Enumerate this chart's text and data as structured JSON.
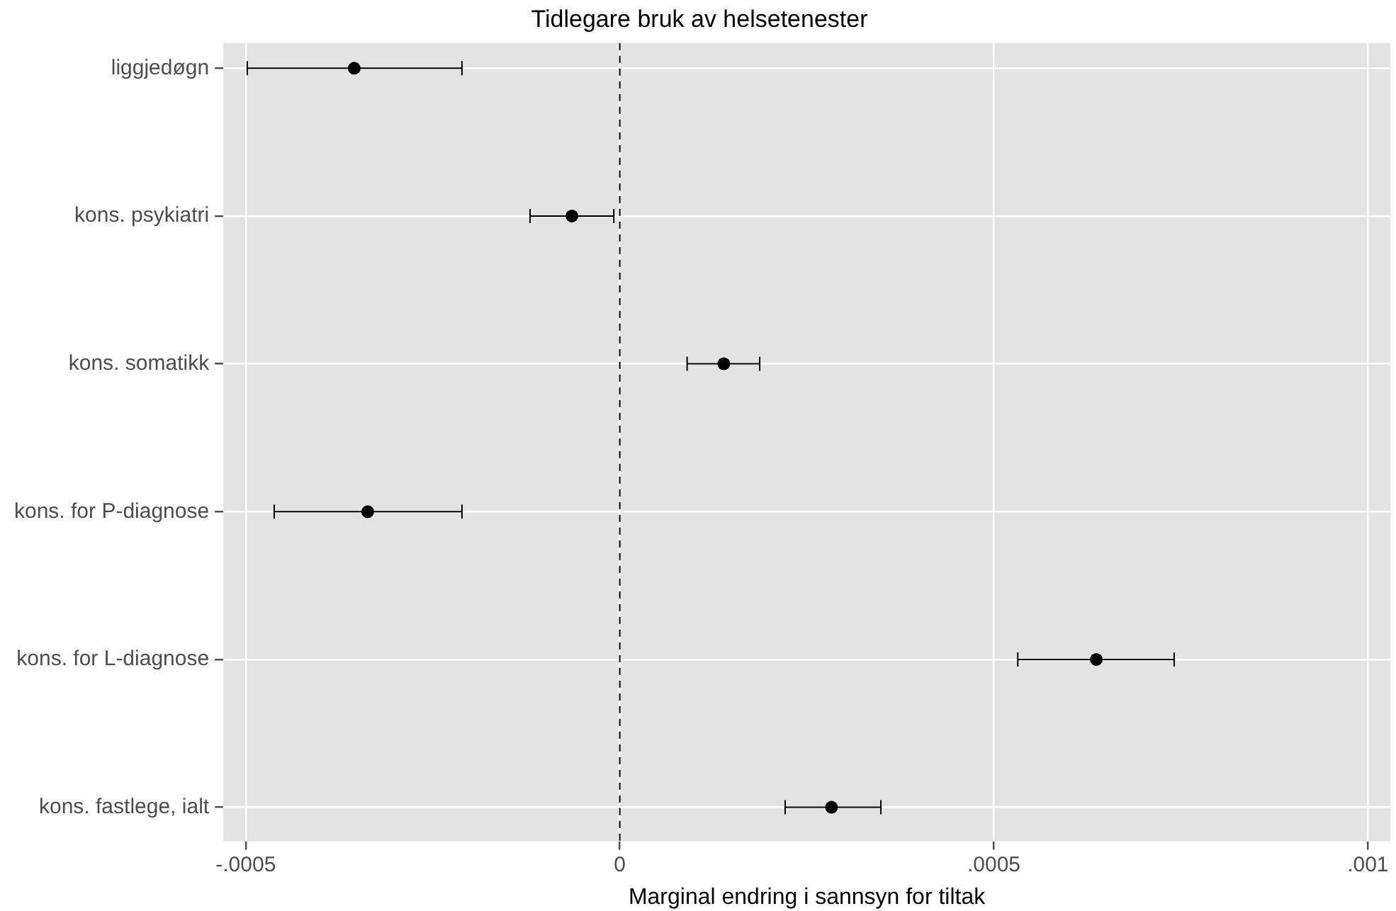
{
  "chart_data": {
    "type": "scatter",
    "orientation": "horizontal",
    "title": "Tidlegare bruk av helsetenester",
    "xlabel": "Marginal endring i sannsyn for tiltak",
    "categories": [
      "liggjedøgn",
      "kons. psykiatri",
      "kons. somatikk",
      "kons. for P-diagnose",
      "kons. for L-diagnose",
      "kons. fastlege, ialt"
    ],
    "values": [
      -0.000355,
      -6.4e-05,
      0.000139,
      -0.000337,
      0.000637,
      0.000283
    ],
    "errors": [
      [
        -0.000498,
        -0.000211
      ],
      [
        -0.00012,
        -8e-06
      ],
      [
        9e-05,
        0.000187
      ],
      [
        -0.000462,
        -0.000211
      ],
      [
        0.000532,
        0.000741
      ],
      [
        0.000221,
        0.000349
      ]
    ],
    "color": "#000000",
    "marker": "circle",
    "xlim": [
      -0.00053,
      0.00103
    ],
    "xticks": [
      {
        "value": -0.0005,
        "label": "-.0005"
      },
      {
        "value": 0,
        "label": "0"
      },
      {
        "value": 0.0005,
        "label": ".0005"
      },
      {
        "value": 0.001,
        "label": ".001"
      }
    ],
    "grid": true,
    "ref_lines": [
      {
        "axis": "x",
        "value": 0,
        "line_style": "dashed",
        "color": "#000000"
      }
    ]
  }
}
